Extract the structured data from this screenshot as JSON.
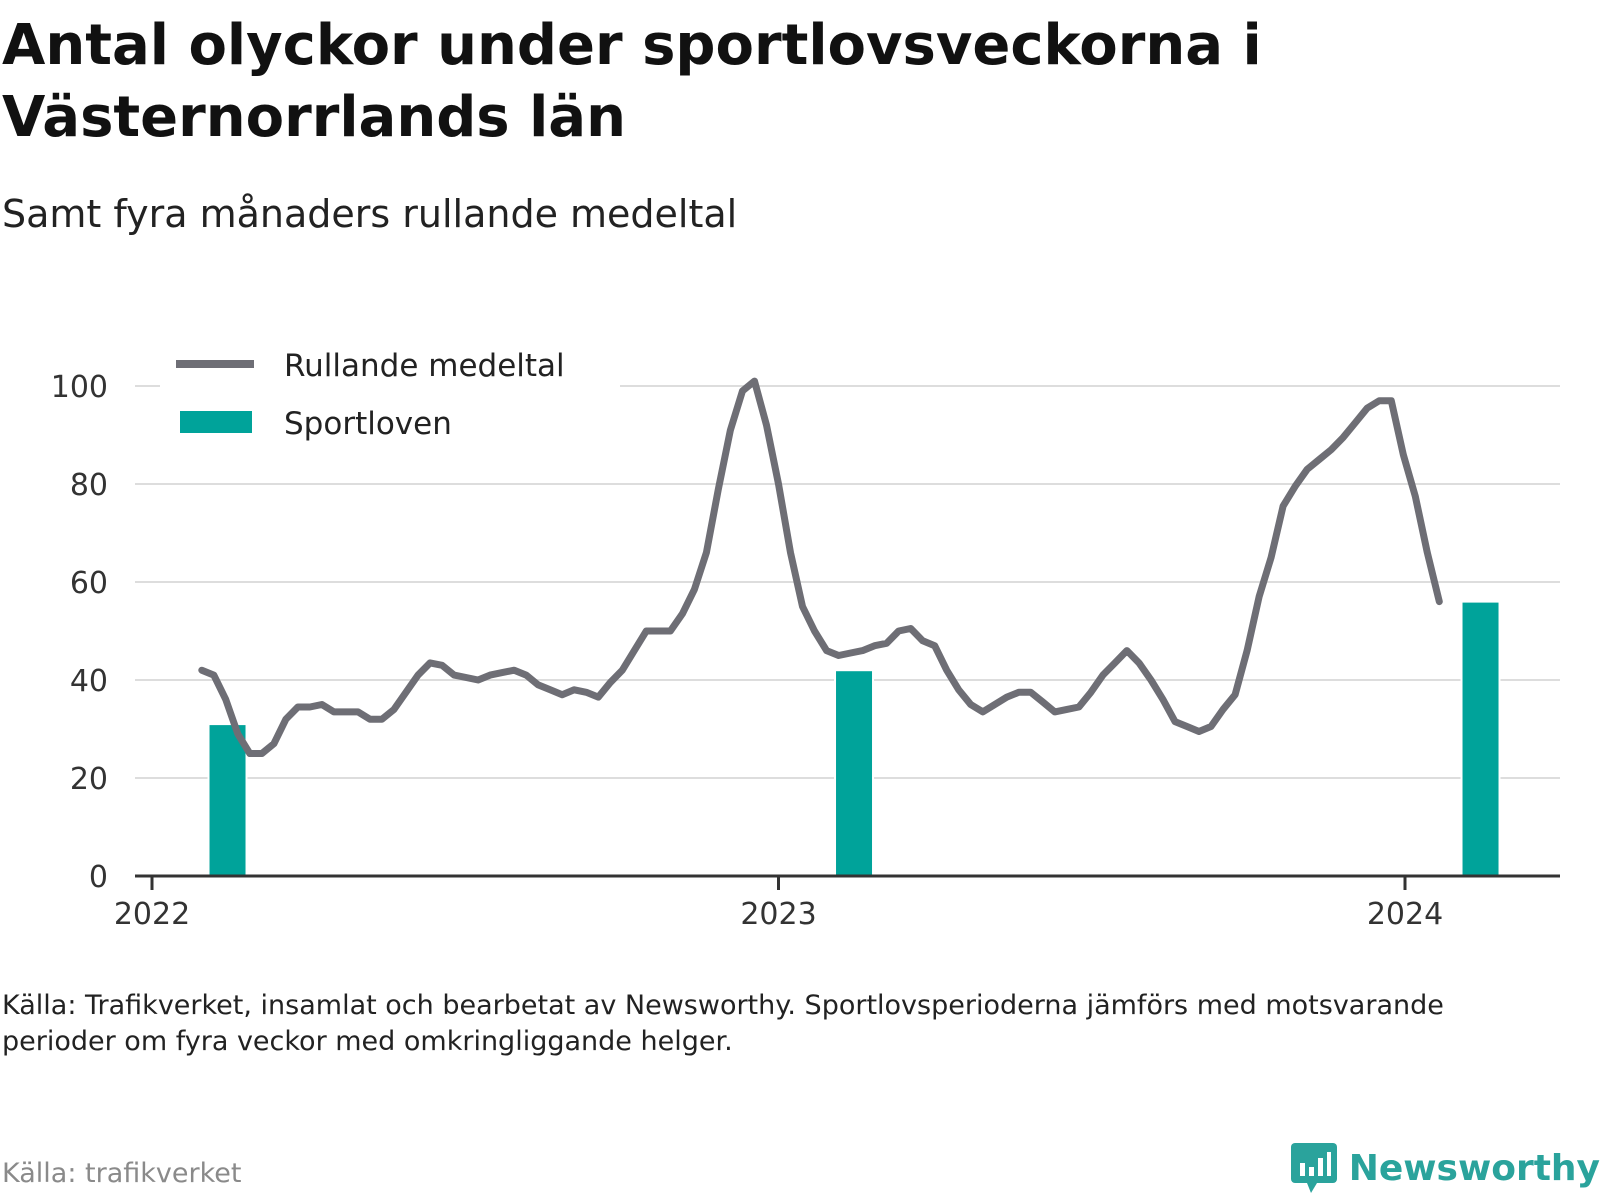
{
  "title": "Antal olyckor under sportlovsveckorna i Västernorrlands län",
  "subtitle": "Samt fyra månaders rullande medeltal",
  "note": "Källa: Trafikverket, insamlat och bearbetat av Newsworthy. Sportlovsperioderna jämförs med motsvarande perioder om fyra veckor med omkringliggande helger.",
  "source": "Källa: trafikverket",
  "brand": "Newsworthy",
  "colors": {
    "line": "#6e6e75",
    "bar": "#00a39a",
    "grid": "#dddddd",
    "brand": "#2aa39c"
  },
  "chart_data": {
    "type": "line",
    "ylim": [
      0,
      100
    ],
    "yticks": [
      0,
      20,
      40,
      60,
      80,
      100
    ],
    "xticks": [
      {
        "label": "2022",
        "date": "2022-01-01"
      },
      {
        "label": "2023",
        "date": "2023-01-01"
      },
      {
        "label": "2024",
        "date": "2024-01-01"
      }
    ],
    "legend": "top-left",
    "series": [
      {
        "name": "Rullande medeltal",
        "type": "line",
        "points": [
          [
            "2022-01-30",
            42
          ],
          [
            "2022-02-06",
            41
          ],
          [
            "2022-02-13",
            36
          ],
          [
            "2022-02-20",
            29
          ],
          [
            "2022-02-27",
            25
          ],
          [
            "2022-03-06",
            25
          ],
          [
            "2022-03-13",
            27
          ],
          [
            "2022-03-20",
            32
          ],
          [
            "2022-03-27",
            34.5
          ],
          [
            "2022-04-03",
            34.5
          ],
          [
            "2022-04-10",
            35
          ],
          [
            "2022-04-17",
            33.5
          ],
          [
            "2022-04-24",
            33.5
          ],
          [
            "2022-05-01",
            33.5
          ],
          [
            "2022-05-08",
            32
          ],
          [
            "2022-05-15",
            32
          ],
          [
            "2022-05-22",
            34
          ],
          [
            "2022-05-29",
            37.5
          ],
          [
            "2022-06-05",
            41
          ],
          [
            "2022-06-12",
            43.5
          ],
          [
            "2022-06-19",
            43
          ],
          [
            "2022-06-26",
            41
          ],
          [
            "2022-07-03",
            40.5
          ],
          [
            "2022-07-10",
            40
          ],
          [
            "2022-07-17",
            41
          ],
          [
            "2022-07-24",
            41.5
          ],
          [
            "2022-07-31",
            42
          ],
          [
            "2022-08-07",
            41
          ],
          [
            "2022-08-14",
            39
          ],
          [
            "2022-08-21",
            38
          ],
          [
            "2022-08-28",
            37
          ],
          [
            "2022-09-04",
            38
          ],
          [
            "2022-09-11",
            37.5
          ],
          [
            "2022-09-18",
            36.5
          ],
          [
            "2022-09-25",
            39.5
          ],
          [
            "2022-10-02",
            42
          ],
          [
            "2022-10-09",
            46
          ],
          [
            "2022-10-16",
            50
          ],
          [
            "2022-10-23",
            50
          ],
          [
            "2022-10-30",
            50
          ],
          [
            "2022-11-06",
            53.5
          ],
          [
            "2022-11-13",
            58.5
          ],
          [
            "2022-11-20",
            66
          ],
          [
            "2022-11-27",
            79
          ],
          [
            "2022-12-04",
            91
          ],
          [
            "2022-12-11",
            99
          ],
          [
            "2022-12-18",
            101
          ],
          [
            "2022-12-25",
            92
          ],
          [
            "2023-01-01",
            80
          ],
          [
            "2023-01-08",
            66
          ],
          [
            "2023-01-15",
            55
          ],
          [
            "2023-01-22",
            50
          ],
          [
            "2023-01-29",
            46
          ],
          [
            "2023-02-05",
            45
          ],
          [
            "2023-02-12",
            45.5
          ],
          [
            "2023-02-19",
            46
          ],
          [
            "2023-02-26",
            47
          ],
          [
            "2023-03-05",
            47.5
          ],
          [
            "2023-03-12",
            50
          ],
          [
            "2023-03-19",
            50.5
          ],
          [
            "2023-03-26",
            48
          ],
          [
            "2023-04-02",
            47
          ],
          [
            "2023-04-09",
            42
          ],
          [
            "2023-04-16",
            38
          ],
          [
            "2023-04-23",
            35
          ],
          [
            "2023-04-30",
            33.5
          ],
          [
            "2023-05-07",
            35
          ],
          [
            "2023-05-14",
            36.5
          ],
          [
            "2023-05-21",
            37.5
          ],
          [
            "2023-05-28",
            37.5
          ],
          [
            "2023-06-04",
            35.5
          ],
          [
            "2023-06-11",
            33.5
          ],
          [
            "2023-06-18",
            34
          ],
          [
            "2023-06-25",
            34.5
          ],
          [
            "2023-07-02",
            37.5
          ],
          [
            "2023-07-09",
            41
          ],
          [
            "2023-07-16",
            43.5
          ],
          [
            "2023-07-23",
            46
          ],
          [
            "2023-07-30",
            43.5
          ],
          [
            "2023-08-06",
            40
          ],
          [
            "2023-08-13",
            36
          ],
          [
            "2023-08-20",
            31.5
          ],
          [
            "2023-08-27",
            30.5
          ],
          [
            "2023-09-03",
            29.5
          ],
          [
            "2023-09-10",
            30.5
          ],
          [
            "2023-09-17",
            34
          ],
          [
            "2023-09-24",
            37
          ],
          [
            "2023-10-01",
            46
          ],
          [
            "2023-10-08",
            57
          ],
          [
            "2023-10-15",
            65
          ],
          [
            "2023-10-22",
            75.5
          ],
          [
            "2023-10-29",
            79.5
          ],
          [
            "2023-11-05",
            83
          ],
          [
            "2023-11-12",
            85
          ],
          [
            "2023-11-19",
            87
          ],
          [
            "2023-11-26",
            89.5
          ],
          [
            "2023-12-03",
            92.5
          ],
          [
            "2023-12-10",
            95.5
          ],
          [
            "2023-12-17",
            97
          ],
          [
            "2023-12-24",
            97
          ],
          [
            "2023-12-31",
            86
          ],
          [
            "2024-01-07",
            77.5
          ],
          [
            "2024-01-14",
            66
          ],
          [
            "2024-01-21",
            56
          ]
        ]
      },
      {
        "name": "Sportloven",
        "type": "bar",
        "points": [
          [
            "2022-02-14",
            31
          ],
          [
            "2023-02-14",
            42
          ],
          [
            "2024-02-14",
            56
          ]
        ]
      }
    ]
  }
}
